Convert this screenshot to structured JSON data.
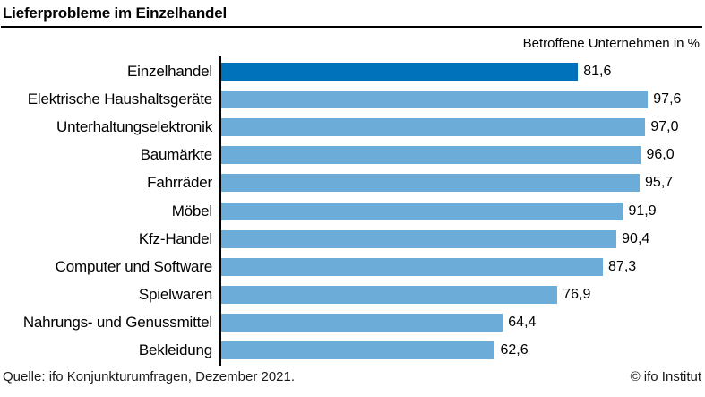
{
  "header": {
    "title": "Lieferprobleme im Einzelhandel",
    "subtitle": "Betroffene Unternehmen in %"
  },
  "chart_data": {
    "type": "bar",
    "orientation": "horizontal",
    "title": "Lieferprobleme im Einzelhandel",
    "subtitle": "Betroffene Unternehmen in %",
    "categories": [
      "Einzelhandel",
      "Elektrische Haushaltsgeräte",
      "Unterhaltungselektronik",
      "Baumärkte",
      "Fahrräder",
      "Möbel",
      "Kfz-Handel",
      "Computer und Software",
      "Spielwaren",
      "Nahrungs- und Genussmittel",
      "Bekleidung"
    ],
    "values": [
      81.6,
      97.6,
      97.0,
      96.0,
      95.7,
      91.9,
      90.4,
      87.3,
      76.9,
      64.4,
      62.6
    ],
    "value_labels": [
      "81,6",
      "97,6",
      "97,0",
      "96,0",
      "95,7",
      "91,9",
      "90,4",
      "87,3",
      "76,9",
      "64,4",
      "62,6"
    ],
    "xlim": [
      0,
      100
    ],
    "grid": false,
    "legend": false,
    "highlight_category": "Einzelhandel",
    "colors": {
      "highlight": "#0072BC",
      "default": "#6CACD8",
      "axis": "#000000"
    }
  },
  "footer": {
    "source": "Quelle: ifo Konjunkturumfragen, Dezember 2021.",
    "copyright": "© ifo Institut"
  }
}
